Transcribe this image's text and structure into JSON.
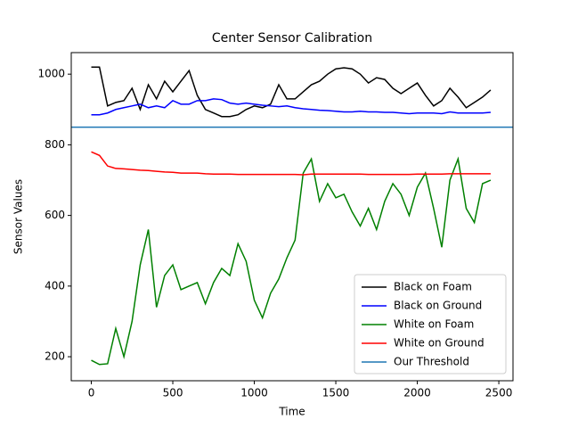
{
  "chart_data": {
    "type": "line",
    "title": "Center Sensor Calibration",
    "x_label": "Time",
    "y_label": "Sensor Values",
    "x": [
      0,
      50,
      100,
      150,
      200,
      250,
      300,
      350,
      400,
      450,
      500,
      550,
      600,
      650,
      700,
      750,
      800,
      850,
      900,
      950,
      1000,
      1050,
      1100,
      1150,
      1200,
      1250,
      1300,
      1350,
      1400,
      1450,
      1500,
      1550,
      1600,
      1650,
      1700,
      1750,
      1800,
      1850,
      1900,
      1950,
      2000,
      2050,
      2100,
      2150,
      2200,
      2250,
      2300,
      2350,
      2400,
      2450
    ],
    "series": [
      {
        "name": "Black on Foam",
        "color": "#000000",
        "values": [
          1020,
          1020,
          910,
          920,
          925,
          960,
          900,
          970,
          930,
          980,
          950,
          980,
          1010,
          940,
          900,
          890,
          880,
          880,
          885,
          900,
          910,
          905,
          915,
          970,
          930,
          930,
          950,
          970,
          980,
          1000,
          1015,
          1018,
          1015,
          1000,
          975,
          990,
          985,
          960,
          945,
          960,
          975,
          940,
          910,
          925,
          960,
          935,
          905,
          920,
          935,
          955
        ]
      },
      {
        "name": "Black on Ground",
        "color": "#0000ff",
        "values": [
          885,
          885,
          890,
          900,
          905,
          910,
          915,
          905,
          910,
          905,
          925,
          915,
          915,
          925,
          925,
          930,
          928,
          918,
          915,
          918,
          915,
          912,
          910,
          908,
          910,
          905,
          902,
          900,
          898,
          897,
          895,
          893,
          893,
          895,
          893,
          893,
          892,
          892,
          890,
          888,
          890,
          890,
          890,
          888,
          893,
          890,
          890,
          890,
          890,
          892
        ]
      },
      {
        "name": "White on Foam",
        "color": "#008000",
        "values": [
          190,
          178,
          180,
          280,
          200,
          300,
          460,
          560,
          340,
          430,
          460,
          390,
          400,
          410,
          350,
          410,
          450,
          430,
          520,
          470,
          360,
          310,
          380,
          420,
          480,
          530,
          720,
          760,
          640,
          690,
          650,
          660,
          610,
          570,
          620,
          560,
          640,
          690,
          660,
          600,
          680,
          720,
          620,
          510,
          700,
          760,
          620,
          580,
          690,
          700
        ]
      },
      {
        "name": "White on Ground",
        "color": "#ff0000",
        "values": [
          780,
          770,
          740,
          733,
          732,
          730,
          728,
          727,
          725,
          723,
          722,
          720,
          720,
          720,
          718,
          717,
          717,
          717,
          716,
          716,
          716,
          716,
          716,
          716,
          716,
          716,
          715,
          717,
          717,
          717,
          717,
          717,
          717,
          717,
          716,
          716,
          716,
          716,
          716,
          716,
          717,
          717,
          717,
          717,
          718,
          718,
          718,
          718,
          718,
          718
        ]
      }
    ],
    "threshold": {
      "name": "Our Threshold",
      "color": "#1f77b4",
      "value": 850
    },
    "xlim": [
      -123,
      2587
    ],
    "ylim": [
      132,
      1061
    ],
    "xticks": [
      0,
      500,
      1000,
      1500,
      2000,
      2500
    ],
    "yticks": [
      200,
      400,
      600,
      800,
      1000
    ],
    "legend": "lower right"
  }
}
